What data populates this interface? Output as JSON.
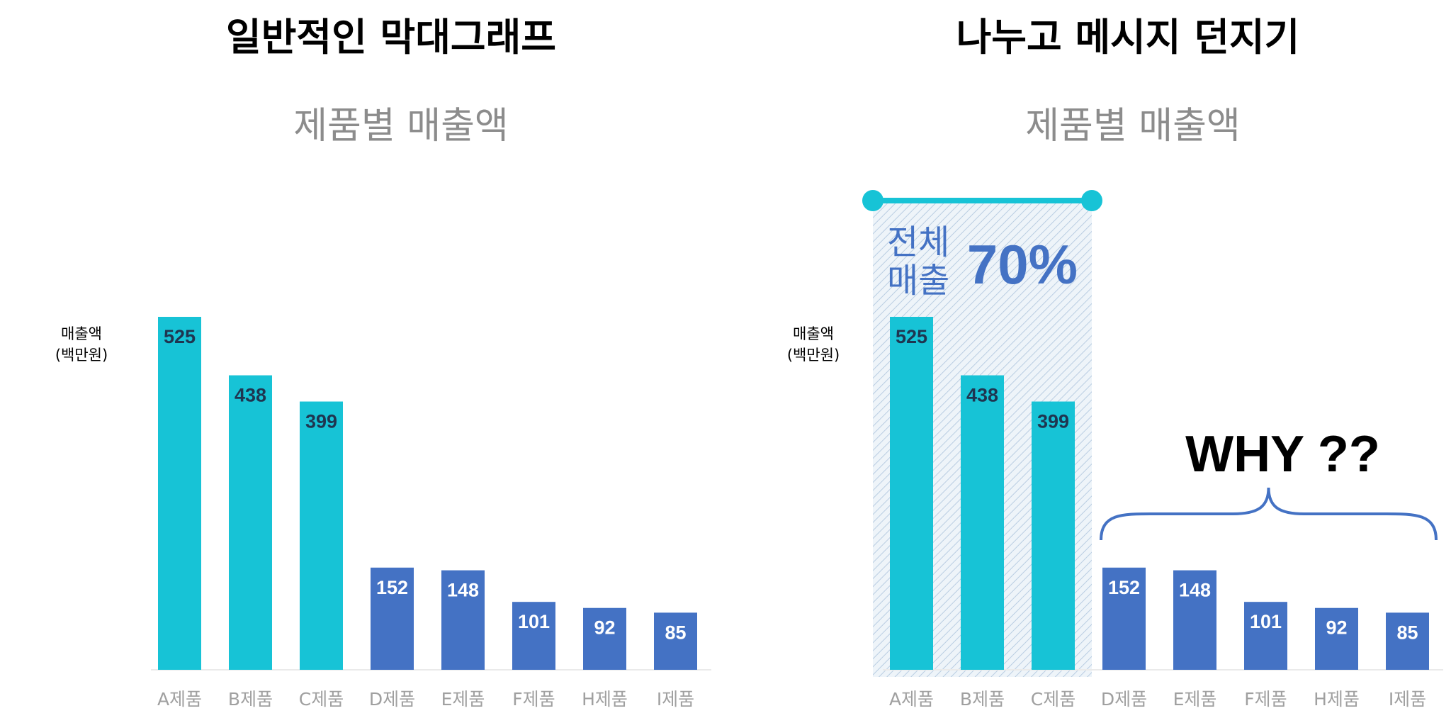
{
  "left_panel": {
    "heading": "일반적인 막대그래프"
  },
  "right_panel": {
    "heading": "나누고 메시지 던지기"
  },
  "chart_data": [
    {
      "type": "bar",
      "title": "제품별 매출액",
      "ylabel": [
        "매출액",
        "(백만원)"
      ],
      "categories": [
        "A제품",
        "B제품",
        "C제품",
        "D제품",
        "E제품",
        "F제품",
        "H제품",
        "I제품"
      ],
      "values": [
        525,
        438,
        399,
        152,
        148,
        101,
        92,
        85
      ],
      "bar_colors": [
        "#17c3d6",
        "#17c3d6",
        "#17c3d6",
        "#4472c4",
        "#4472c4",
        "#4472c4",
        "#4472c4",
        "#4472c4"
      ],
      "label_colors": [
        "#1f3550",
        "#1f3550",
        "#1f3550",
        "#ffffff",
        "#ffffff",
        "#ffffff",
        "#ffffff",
        "#ffffff"
      ],
      "ylim": [
        0,
        525
      ],
      "grid": false
    },
    {
      "type": "bar",
      "title": "제품별 매출액",
      "ylabel": [
        "매출액",
        "(백만원)"
      ],
      "categories": [
        "A제품",
        "B제품",
        "C제품",
        "D제품",
        "E제품",
        "F제품",
        "H제품",
        "I제품"
      ],
      "values": [
        525,
        438,
        399,
        152,
        148,
        101,
        92,
        85
      ],
      "bar_colors": [
        "#17c3d6",
        "#17c3d6",
        "#17c3d6",
        "#4472c4",
        "#4472c4",
        "#4472c4",
        "#4472c4",
        "#4472c4"
      ],
      "label_colors": [
        "#1f3550",
        "#1f3550",
        "#1f3550",
        "#ffffff",
        "#ffffff",
        "#ffffff",
        "#ffffff",
        "#ffffff"
      ],
      "ylim": [
        0,
        525
      ],
      "grid": false,
      "annotations": {
        "group_share": {
          "line1": "전체",
          "line2": "매출",
          "percent": "70%",
          "covers_categories": [
            "A제품",
            "B제품",
            "C제품"
          ]
        },
        "question": {
          "text": "WHY ??",
          "covers_categories": [
            "D제품",
            "E제품",
            "F제품",
            "H제품",
            "I제품"
          ]
        }
      }
    }
  ],
  "colors": {
    "teal": "#17c3d6",
    "blue": "#4472c4",
    "title_gray": "#8c8c8c",
    "tick_gray": "#a0a0a0"
  }
}
